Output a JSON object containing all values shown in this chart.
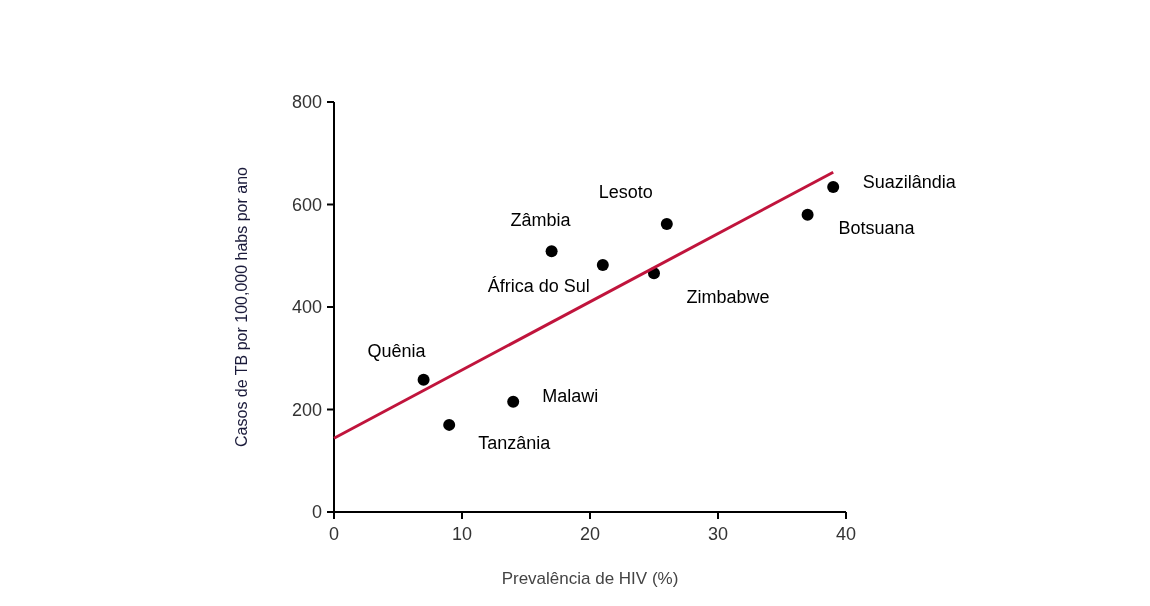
{
  "chart_data": {
    "type": "scatter",
    "xlabel": "Prevalência de HIV (%)",
    "ylabel": "Casos de TB por 100,000 habs por ano",
    "xlim": [
      0,
      40
    ],
    "ylim": [
      0,
      800
    ],
    "xticks": [
      0,
      10,
      20,
      30,
      40
    ],
    "yticks": [
      0,
      200,
      400,
      600,
      800
    ],
    "grid": false,
    "series": [
      {
        "marker": "circle",
        "color": "#000000",
        "x": [
          7,
          9,
          14,
          17,
          21,
          25,
          26,
          37,
          39
        ],
        "values": [
          258,
          170,
          215,
          509,
          482,
          466,
          562,
          580,
          634
        ]
      },
      {
        "type": "line",
        "color": "#c0143c",
        "x": [
          0,
          39
        ],
        "values": [
          144,
          663
        ]
      }
    ],
    "annotations": [
      {
        "text": "Quênia",
        "x": 7,
        "y": 258
      },
      {
        "text": "Tanzânia",
        "x": 9,
        "y": 170
      },
      {
        "text": "Malawi",
        "x": 14,
        "y": 215
      },
      {
        "text": "Zâmbia",
        "x": 17,
        "y": 509
      },
      {
        "text": "África do Sul",
        "x": 21,
        "y": 482
      },
      {
        "text": "Zimbabwe",
        "x": 25,
        "y": 466
      },
      {
        "text": "Lesoto",
        "x": 26,
        "y": 562
      },
      {
        "text": "Botsuana",
        "x": 37,
        "y": 580
      },
      {
        "text": "Suazilândia",
        "x": 39,
        "y": 634
      }
    ]
  }
}
